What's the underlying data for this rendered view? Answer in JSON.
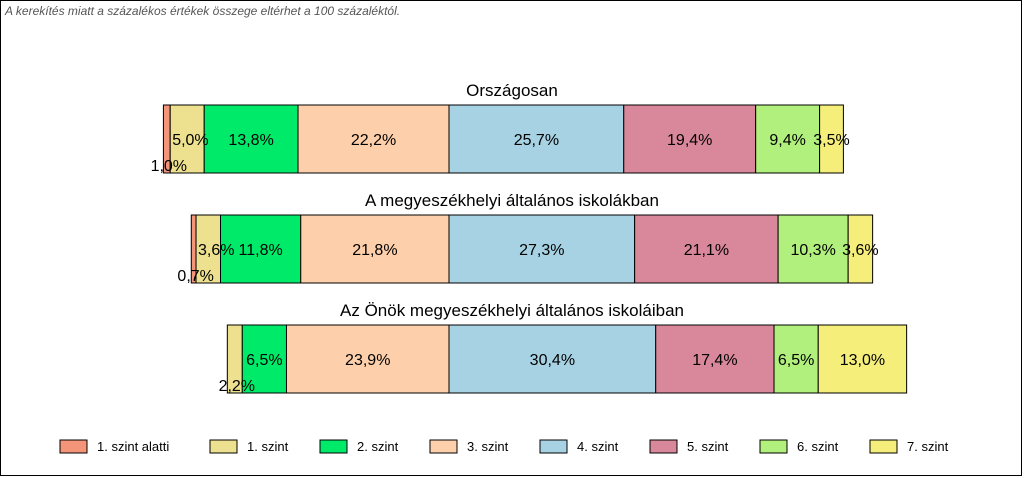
{
  "note": "A kerekítés miatt a  százalékos értékek összege eltérhet a 100 százaléktól.",
  "chart_data": {
    "type": "bar",
    "orientation": "horizontal",
    "stacked": true,
    "centered_on": "4. szint",
    "legend_position": "bottom",
    "categories": [
      "1. szint alatti",
      "1. szint",
      "2. szint",
      "3. szint",
      "4. szint",
      "5. szint",
      "6. szint",
      "7. szint"
    ],
    "colors": [
      "#f4957a",
      "#ede18f",
      "#00ea6a",
      "#fdd0ab",
      "#a7d2e3",
      "#d9879a",
      "#b1f07c",
      "#f5ee7a"
    ],
    "rows": [
      {
        "title": "Országosan",
        "values": [
          1.0,
          5.0,
          13.8,
          22.2,
          25.7,
          19.4,
          9.4,
          3.5
        ],
        "labels": [
          "1,0%",
          "5,0%",
          "13,8%",
          "22,2%",
          "25,7%",
          "19,4%",
          "9,4%",
          "3,5%"
        ]
      },
      {
        "title": "A megyeszékhelyi általános iskolákban",
        "values": [
          0.7,
          3.6,
          11.8,
          21.8,
          27.3,
          21.1,
          10.3,
          3.6
        ],
        "labels": [
          "0,7%",
          "3,6%",
          "11,8%",
          "21,8%",
          "27,3%",
          "21,1%",
          "10,3%",
          "3,6%"
        ]
      },
      {
        "title": "Az Önök megyeszékhelyi általános iskoláiban",
        "values": [
          0.0,
          2.2,
          6.5,
          23.9,
          30.4,
          17.4,
          6.5,
          13.0
        ],
        "labels": [
          "",
          "2,2%",
          "6,5%",
          "23,9%",
          "30,4%",
          "17,4%",
          "6,5%",
          "13,0%"
        ]
      }
    ]
  }
}
